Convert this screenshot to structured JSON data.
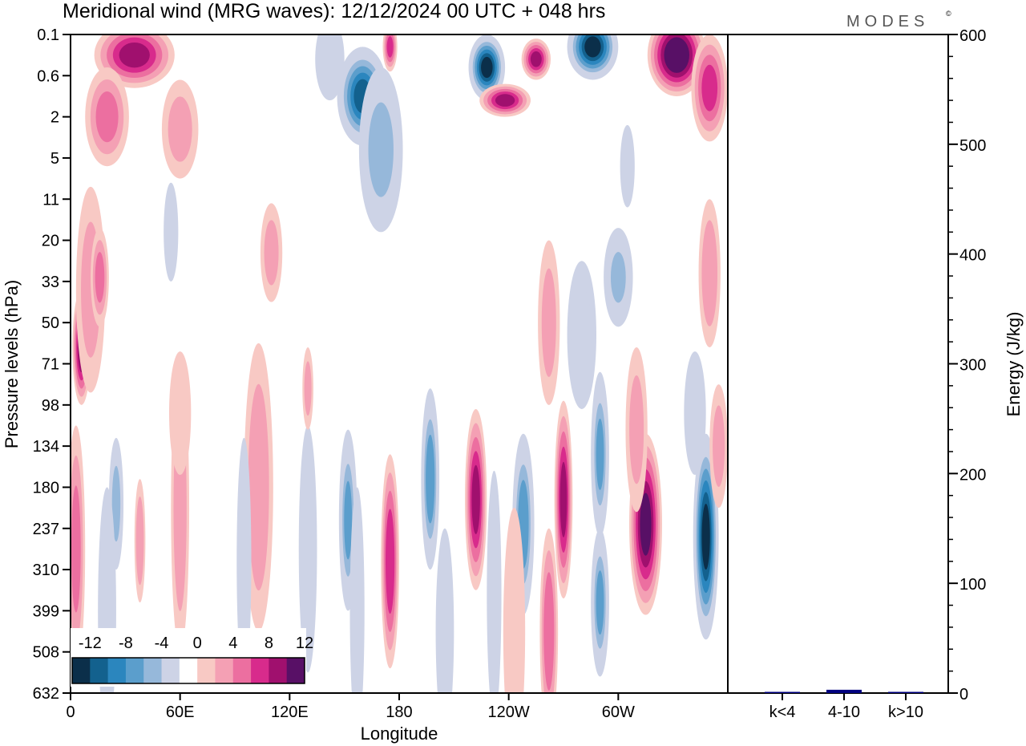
{
  "header": {
    "title": "Meridional wind (MRG waves):  12/12/2024  00 UTC  + 048 hrs",
    "logo": "MODES",
    "logo_mark": "©"
  },
  "chart_data": [
    {
      "type": "heatmap",
      "title": "Meridional wind (MRG waves):  12/12/2024  00 UTC  + 048 hrs",
      "xlabel": "Longitude",
      "ylabel": "Pressure levels (hPa)",
      "x_ticks": [
        "0",
        "60E",
        "120E",
        "180",
        "120W",
        "60W"
      ],
      "x_tick_degrees": [
        0,
        60,
        120,
        180,
        240,
        300
      ],
      "xlim": [
        0,
        360
      ],
      "y_ticks": [
        "0.1",
        "0.6",
        "2",
        "5",
        "11",
        "20",
        "33",
        "50",
        "71",
        "98",
        "134",
        "180",
        "237",
        "310",
        "399",
        "508",
        "632"
      ],
      "colorbar": {
        "labels": [
          "-12",
          "-8",
          "-4",
          "0",
          "4",
          "8",
          "12"
        ],
        "levels": [
          -14,
          -12,
          -10,
          -8,
          -6,
          -4,
          -2,
          2,
          4,
          6,
          8,
          10,
          12,
          14
        ],
        "colors": [
          "#0b2f4a",
          "#13618e",
          "#2b86be",
          "#5b9ecc",
          "#96b8da",
          "#cdd3e6",
          "#ffffff",
          "#f8c9c4",
          "#f4a0b4",
          "#ec6fa0",
          "#d82b8c",
          "#a0106e",
          "#581066"
        ]
      },
      "features": [
        {
          "lon": 6,
          "lev": 7.6,
          "v": 11,
          "rx": 5,
          "ry": 1.4
        },
        {
          "lon": 3,
          "lev": 12.5,
          "v": 6,
          "rx": 5,
          "ry": 3
        },
        {
          "lon": 11,
          "lev": 6.2,
          "v": 4,
          "rx": 8,
          "ry": 2.5
        },
        {
          "lon": 25,
          "lev": 11.4,
          "v": -7,
          "rx": 4,
          "ry": 1.6
        },
        {
          "lon": 20,
          "lev": 14,
          "v": -3,
          "rx": 5,
          "ry": 3
        },
        {
          "lon": 38,
          "lev": 12.3,
          "v": 5,
          "rx": 3,
          "ry": 1.5
        },
        {
          "lon": 60,
          "lev": 11.5,
          "v": 5,
          "rx": 5,
          "ry": 3.5
        },
        {
          "lon": 60,
          "lev": 9.2,
          "v": 3,
          "rx": 6,
          "ry": 1.5
        },
        {
          "lon": 103,
          "lev": 11,
          "v": 5,
          "rx": 8,
          "ry": 3.5
        },
        {
          "lon": 95,
          "lev": 12.8,
          "v": -3,
          "rx": 4,
          "ry": 3
        },
        {
          "lon": 130,
          "lev": 12.5,
          "v": -3,
          "rx": 5,
          "ry": 3
        },
        {
          "lon": 152,
          "lev": 11.8,
          "v": -8,
          "rx": 5,
          "ry": 2.2
        },
        {
          "lon": 157,
          "lev": 14,
          "v": -3,
          "rx": 4,
          "ry": 3
        },
        {
          "lon": 175,
          "lev": 12.8,
          "v": 9,
          "rx": 5,
          "ry": 2.6
        },
        {
          "lon": 197,
          "lev": 10.8,
          "v": -9,
          "rx": 5,
          "ry": 2.2
        },
        {
          "lon": 205,
          "lev": 14.5,
          "v": -3,
          "rx": 5,
          "ry": 2.5
        },
        {
          "lon": 222,
          "lev": 11.3,
          "v": 10,
          "rx": 6,
          "ry": 2.2
        },
        {
          "lon": 232,
          "lev": 13.6,
          "v": -3,
          "rx": 4,
          "ry": 3
        },
        {
          "lon": 248,
          "lev": 11.9,
          "v": -9,
          "rx": 6,
          "ry": 2.2
        },
        {
          "lon": 243,
          "lev": 14.5,
          "v": 3,
          "rx": 6,
          "ry": 3
        },
        {
          "lon": 270,
          "lev": 11.3,
          "v": 10,
          "rx": 5,
          "ry": 2.4
        },
        {
          "lon": 262,
          "lev": 14.5,
          "v": 7,
          "rx": 5,
          "ry": 2.5
        },
        {
          "lon": 290,
          "lev": 10.2,
          "v": -8,
          "rx": 5,
          "ry": 2
        },
        {
          "lon": 290,
          "lev": 13.8,
          "v": -8,
          "rx": 5,
          "ry": 1.8
        },
        {
          "lon": 315,
          "lev": 11.9,
          "v": 12,
          "rx": 9,
          "ry": 2.2
        },
        {
          "lon": 310,
          "lev": 9.6,
          "v": 4,
          "rx": 6,
          "ry": 2
        },
        {
          "lon": 348,
          "lev": 12.2,
          "v": -14,
          "rx": 7,
          "ry": 2.5
        },
        {
          "lon": 342,
          "lev": 9.2,
          "v": -4,
          "rx": 6,
          "ry": 1.5
        },
        {
          "lon": 355,
          "lev": 10,
          "v": 4,
          "rx": 5,
          "ry": 1.5
        },
        {
          "lon": 280,
          "lev": 7.3,
          "v": -4,
          "rx": 8,
          "ry": 1.8
        },
        {
          "lon": 300,
          "lev": 5.9,
          "v": -6,
          "rx": 8,
          "ry": 1.2
        },
        {
          "lon": 262,
          "lev": 7,
          "v": 4,
          "rx": 6,
          "ry": 2
        },
        {
          "lon": 16,
          "lev": 5.9,
          "v": 6,
          "rx": 5,
          "ry": 1.2
        },
        {
          "lon": 55,
          "lev": 4.8,
          "v": -3,
          "rx": 4,
          "ry": 1.2
        },
        {
          "lon": 110,
          "lev": 5.3,
          "v": 4,
          "rx": 6,
          "ry": 1.2
        },
        {
          "lon": 130,
          "lev": 8.6,
          "v": 4,
          "rx": 3,
          "ry": 1
        },
        {
          "lon": 350,
          "lev": 5.8,
          "v": 5,
          "rx": 6,
          "ry": 1.8
        },
        {
          "lon": 160,
          "lev": 1.5,
          "v": -12,
          "rx": 14,
          "ry": 1.2
        },
        {
          "lon": 170,
          "lev": 2.8,
          "v": -7,
          "rx": 12,
          "ry": 2
        },
        {
          "lon": 142,
          "lev": 0.6,
          "v": -4,
          "rx": 8,
          "ry": 1
        },
        {
          "lon": 228,
          "lev": 0.8,
          "v": -14,
          "rx": 10,
          "ry": 0.8
        },
        {
          "lon": 286,
          "lev": 0.3,
          "v": -14,
          "rx": 14,
          "ry": 0.8
        },
        {
          "lon": 332,
          "lev": 0.5,
          "v": 14,
          "rx": 16,
          "ry": 1
        },
        {
          "lon": 350,
          "lev": 1.3,
          "v": 8,
          "rx": 10,
          "ry": 1.3
        },
        {
          "lon": 35,
          "lev": 0.5,
          "v": 10,
          "rx": 22,
          "ry": 0.8
        },
        {
          "lon": 20,
          "lev": 2,
          "v": 6,
          "rx": 12,
          "ry": 1.2
        },
        {
          "lon": 60,
          "lev": 2.3,
          "v": 4,
          "rx": 10,
          "ry": 1.2
        },
        {
          "lon": 238,
          "lev": 1.6,
          "v": 10,
          "rx": 14,
          "ry": 0.4
        },
        {
          "lon": 255,
          "lev": 0.6,
          "v": 10,
          "rx": 8,
          "ry": 0.5
        },
        {
          "lon": 175,
          "lev": 0.3,
          "v": 8,
          "rx": 4,
          "ry": 0.6
        },
        {
          "lon": 305,
          "lev": 3.2,
          "v": -3,
          "rx": 4,
          "ry": 1
        }
      ]
    },
    {
      "type": "bar",
      "categories": [
        "k<4",
        "4-10",
        "k>10"
      ],
      "values": [
        1,
        3,
        0.5
      ],
      "ylabel": "Energy (J/kg)",
      "ylim": [
        0,
        600
      ],
      "y_ticks": [
        0,
        100,
        200,
        300,
        400,
        500,
        600
      ],
      "bar_colors": [
        "#000080",
        "#000080",
        "#000080"
      ]
    }
  ]
}
